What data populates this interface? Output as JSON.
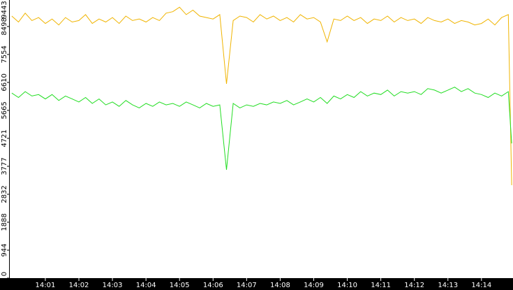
{
  "chart_data": {
    "type": "line",
    "x": [
      0,
      0.2,
      0.4,
      0.6,
      0.8,
      1,
      1.2,
      1.4,
      1.6,
      1.8,
      2,
      2.2,
      2.4,
      2.6,
      2.8,
      3,
      3.2,
      3.4,
      3.6,
      3.8,
      4,
      4.2,
      4.4,
      4.6,
      4.8,
      5,
      5.2,
      5.4,
      5.6,
      5.8,
      6,
      6.2,
      6.4,
      6.6,
      6.8,
      7,
      7.2,
      7.4,
      7.6,
      7.8,
      8,
      8.2,
      8.4,
      8.6,
      8.8,
      9,
      9.2,
      9.4,
      9.6,
      9.8,
      10,
      10.2,
      10.4,
      10.6,
      10.8,
      11,
      11.2,
      11.4,
      11.6,
      11.8,
      12,
      12.2,
      12.4,
      12.6,
      12.8,
      13,
      13.2,
      13.4,
      13.6,
      13.8,
      14,
      14.2,
      14.4,
      14.6,
      14.8,
      14.9
    ],
    "series": [
      {
        "color": "#f0b400",
        "values": [
          8850,
          8650,
          8950,
          8700,
          8800,
          8600,
          8750,
          8550,
          8800,
          8650,
          8700,
          8900,
          8600,
          8750,
          8650,
          8800,
          8600,
          8850,
          8700,
          8750,
          8650,
          8800,
          8700,
          8950,
          9000,
          9150,
          8900,
          9050,
          8850,
          8800,
          8750,
          8900,
          6560,
          8700,
          8850,
          8800,
          8650,
          8900,
          8750,
          8850,
          8700,
          8800,
          8650,
          8900,
          8750,
          8800,
          8650,
          7980,
          8750,
          8700,
          8850,
          8700,
          8800,
          8600,
          8750,
          8700,
          8850,
          8650,
          8800,
          8700,
          8750,
          8600,
          8800,
          8700,
          8650,
          8750,
          8600,
          8700,
          8650,
          8550,
          8600,
          8750,
          8550,
          8800,
          8900,
          3140
        ]
      },
      {
        "color": "#22dd22",
        "values": [
          6250,
          6100,
          6300,
          6150,
          6200,
          6050,
          6200,
          6000,
          6150,
          6050,
          5950,
          6100,
          5900,
          6050,
          5850,
          5950,
          5800,
          6000,
          5850,
          5750,
          5900,
          5800,
          5950,
          5850,
          5900,
          5800,
          5950,
          5850,
          5750,
          5900,
          5800,
          5850,
          3660,
          5900,
          5750,
          5850,
          5800,
          5900,
          5850,
          5950,
          5900,
          6000,
          5850,
          5950,
          6050,
          5950,
          6100,
          5900,
          6150,
          6050,
          6200,
          6100,
          6300,
          6150,
          6250,
          6200,
          6350,
          6150,
          6300,
          6250,
          6300,
          6200,
          6400,
          6350,
          6250,
          6350,
          6450,
          6300,
          6400,
          6250,
          6200,
          6100,
          6250,
          6150,
          6300,
          4550
        ]
      }
    ],
    "xlim": [
      -0.06,
      14.94
    ],
    "xticks": [
      {
        "value": 1,
        "label": "14:01"
      },
      {
        "value": 2,
        "label": "14:02"
      },
      {
        "value": 3,
        "label": "14:03"
      },
      {
        "value": 4,
        "label": "14:04"
      },
      {
        "value": 5,
        "label": "14:05"
      },
      {
        "value": 6,
        "label": "14:06"
      },
      {
        "value": 7,
        "label": "14:07"
      },
      {
        "value": 8,
        "label": "14:08"
      },
      {
        "value": 9,
        "label": "14:09"
      },
      {
        "value": 10,
        "label": "14:10"
      },
      {
        "value": 11,
        "label": "14:11"
      },
      {
        "value": 12,
        "label": "14:12"
      },
      {
        "value": 13,
        "label": "14:13"
      },
      {
        "value": 14,
        "label": "14:14"
      }
    ],
    "ylim": [
      0,
      9393
    ],
    "yticks": [
      0,
      944,
      1888,
      2832,
      3777,
      4721,
      5665,
      6610,
      7554,
      8498,
      9443
    ]
  }
}
